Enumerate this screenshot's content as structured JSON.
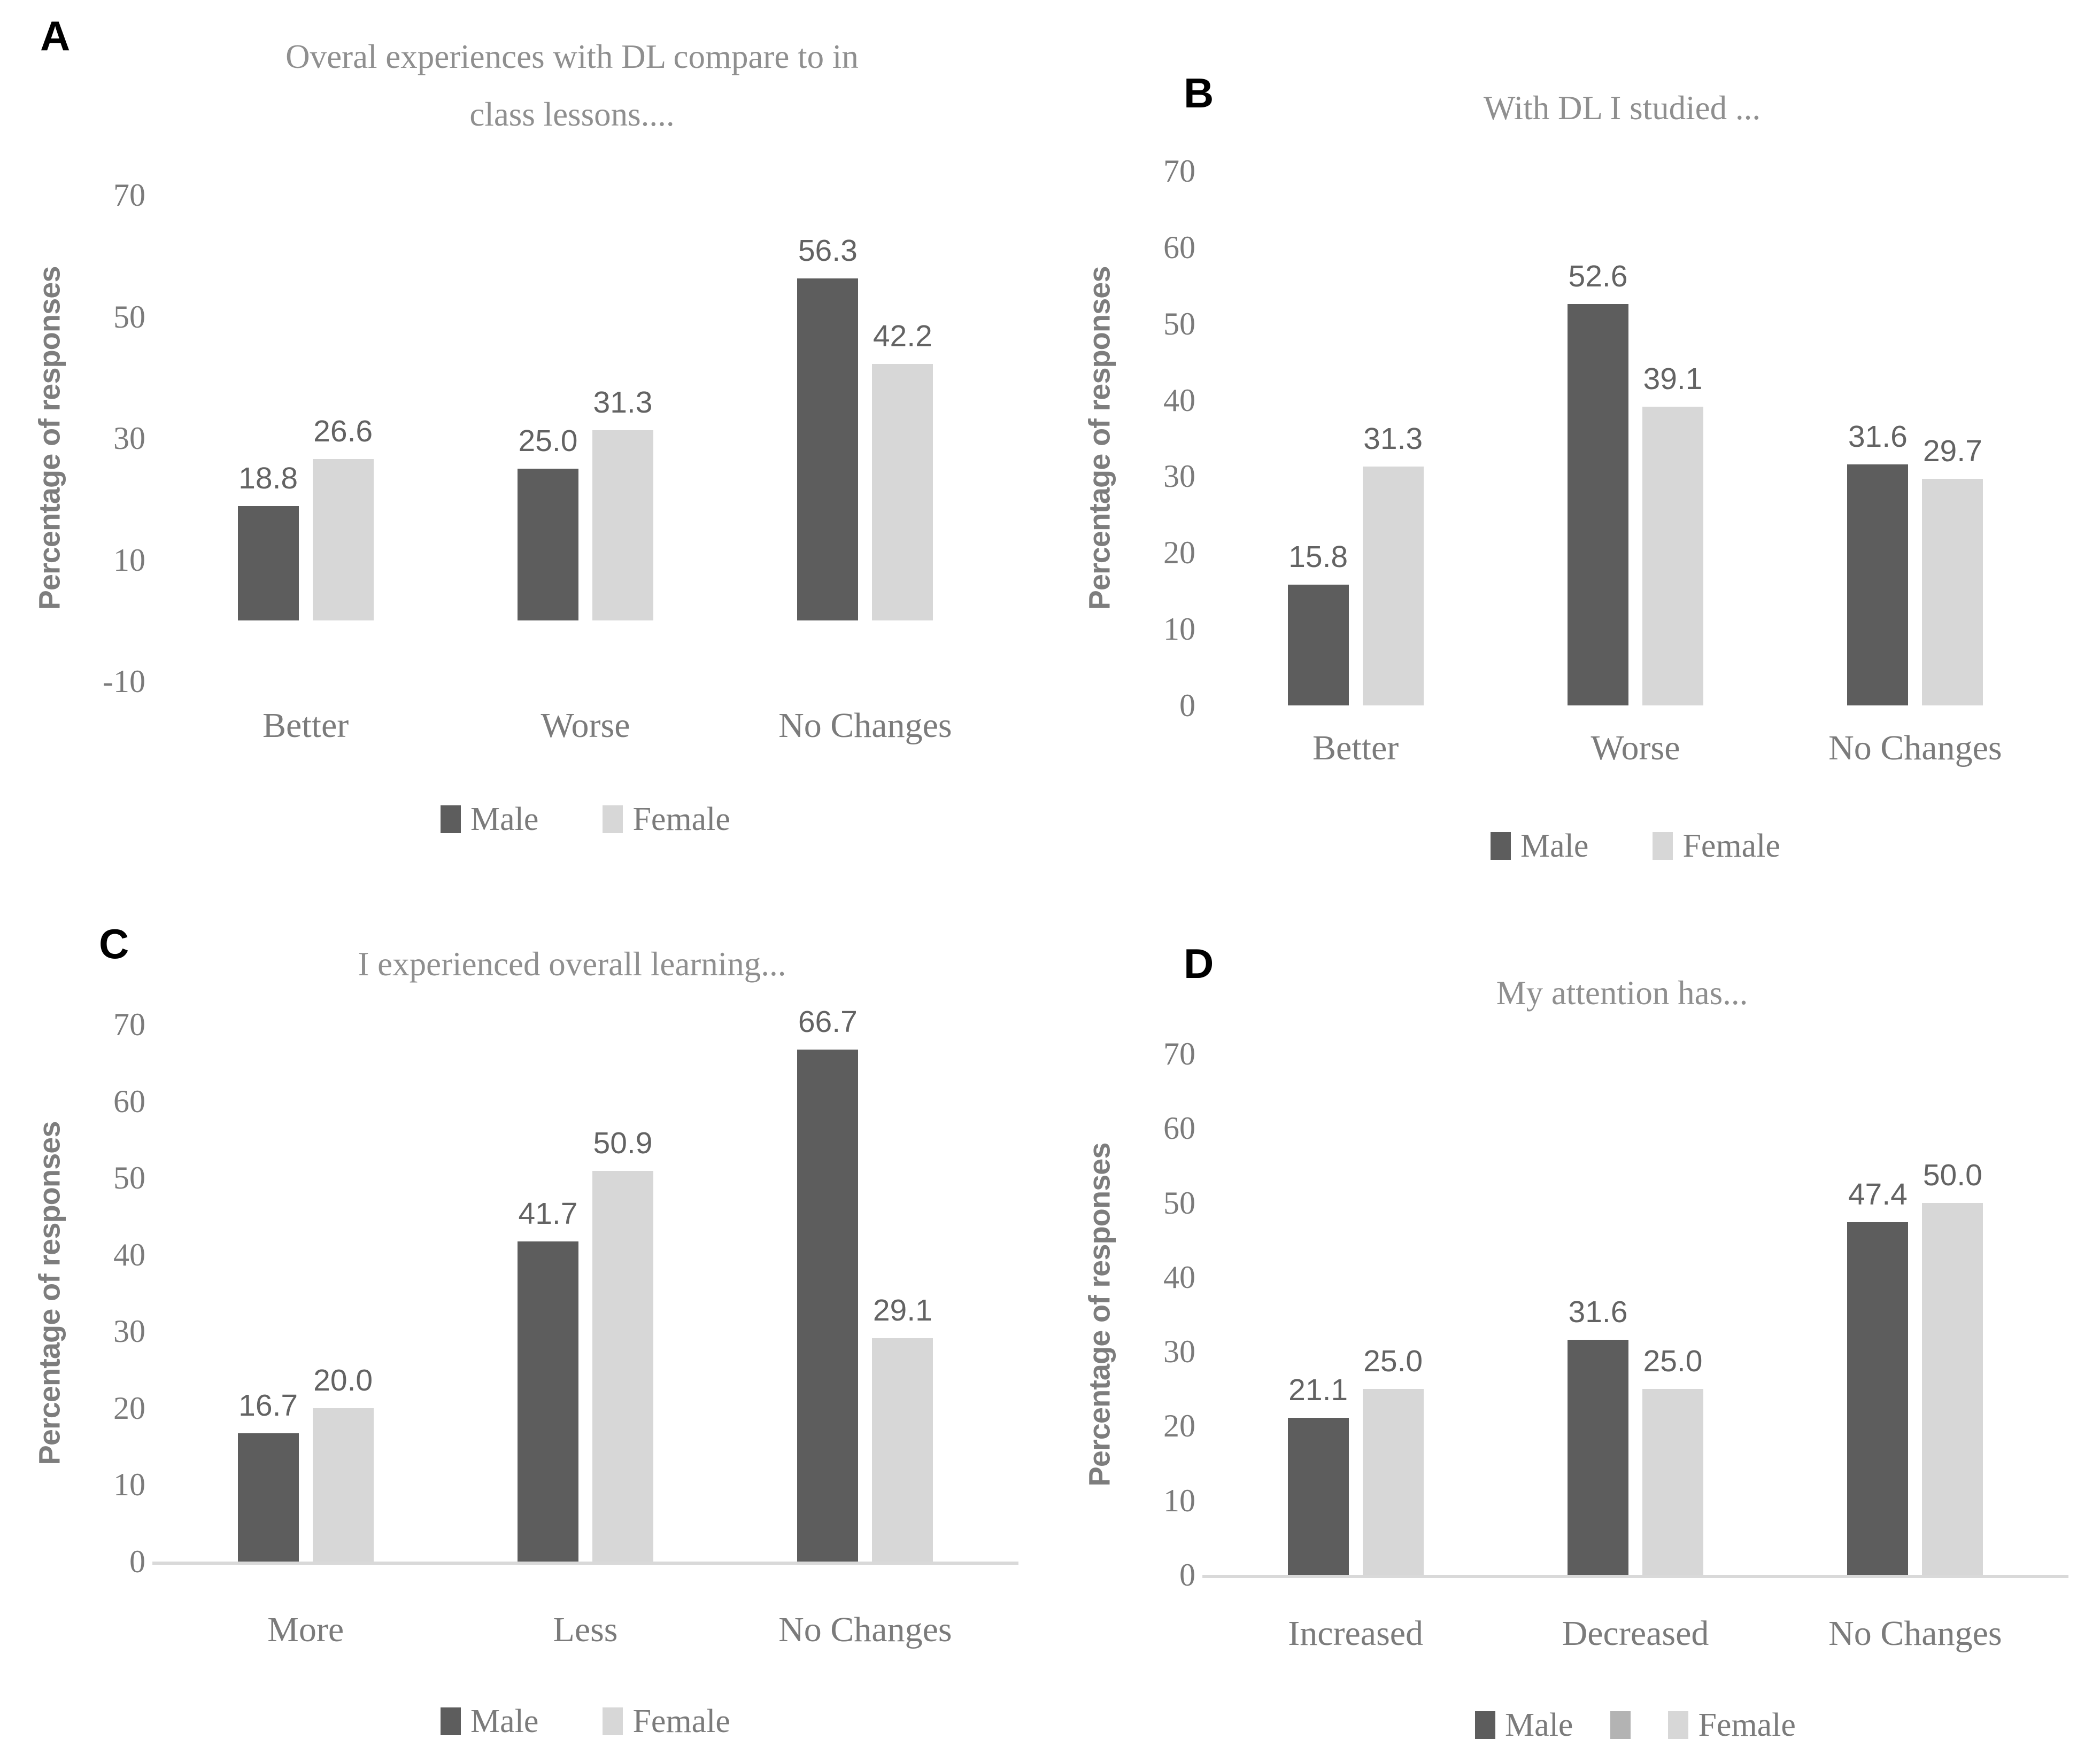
{
  "colors": {
    "male_bar": "#5d5d5d",
    "female_bar": "#d7d7d7",
    "legend_extra_swatch": "#b3b3b3",
    "axis_line": "#d9d9d9",
    "title_text": "#8f8f8f",
    "axis_text": "#7b7b7b",
    "data_label_text": "#636363",
    "panel_letter_text": "#000000"
  },
  "chart_data": [
    {
      "type": "bar",
      "panel_label": "A",
      "title": "Overal experiences with DL compare to in class lessons....",
      "ylabel": "Percentage of responses",
      "xlabel": "",
      "categories": [
        "Better",
        "Worse",
        "No Changes"
      ],
      "series": [
        {
          "name": "Male",
          "color_key": "male_bar",
          "values": [
            18.8,
            25.0,
            56.3
          ]
        },
        {
          "name": "Female",
          "color_key": "female_bar",
          "values": [
            26.6,
            31.3,
            42.2
          ]
        }
      ],
      "ylim": [
        -10,
        70
      ],
      "yticks": [
        70,
        50,
        30,
        10,
        -10
      ],
      "grid": false,
      "axis_line_visible": false,
      "data_label_decimals": 1,
      "legend_position": "bottom",
      "legend": [
        {
          "label": "Male",
          "color_key": "male_bar"
        },
        {
          "label": "Female",
          "color_key": "female_bar"
        }
      ]
    },
    {
      "type": "bar",
      "panel_label": "B",
      "title": "With DL I studied ...",
      "ylabel": "Percentage of responses",
      "xlabel": "",
      "categories": [
        "Better",
        "Worse",
        "No Changes"
      ],
      "series": [
        {
          "name": "Male",
          "color_key": "male_bar",
          "values": [
            15.8,
            52.6,
            31.6
          ]
        },
        {
          "name": "Female",
          "color_key": "female_bar",
          "values": [
            31.3,
            39.1,
            29.7
          ]
        }
      ],
      "ylim": [
        0,
        70
      ],
      "yticks": [
        70,
        60,
        50,
        40,
        30,
        20,
        10,
        0
      ],
      "grid": false,
      "axis_line_visible": false,
      "data_label_decimals": 1,
      "legend_position": "bottom",
      "legend": [
        {
          "label": "Male",
          "color_key": "male_bar"
        },
        {
          "label": "Female",
          "color_key": "female_bar"
        }
      ]
    },
    {
      "type": "bar",
      "panel_label": "C",
      "title": "I experienced overall learning...",
      "ylabel": "Percentage of responses",
      "xlabel": "",
      "categories": [
        "More",
        "Less",
        "No Changes"
      ],
      "series": [
        {
          "name": "Male",
          "color_key": "male_bar",
          "values": [
            16.7,
            41.7,
            66.7
          ]
        },
        {
          "name": "Female",
          "color_key": "female_bar",
          "values": [
            20.0,
            50.9,
            29.1
          ]
        }
      ],
      "ylim": [
        0,
        70
      ],
      "yticks": [
        70,
        60,
        50,
        40,
        30,
        20,
        10,
        0
      ],
      "grid": false,
      "axis_line_visible": true,
      "data_label_decimals": 1,
      "legend_position": "bottom",
      "legend": [
        {
          "label": "Male",
          "color_key": "male_bar"
        },
        {
          "label": "Female",
          "color_key": "female_bar"
        }
      ]
    },
    {
      "type": "bar",
      "panel_label": "D",
      "title": "My attention has...",
      "ylabel": "Percentage of responses",
      "xlabel": "",
      "categories": [
        "Increased",
        "Decreased",
        "No Changes"
      ],
      "series": [
        {
          "name": "Male",
          "color_key": "male_bar",
          "values": [
            21.1,
            31.6,
            47.4
          ]
        },
        {
          "name": "Female",
          "color_key": "female_bar",
          "values": [
            25.0,
            25.0,
            50.0
          ]
        }
      ],
      "ylim": [
        0,
        70
      ],
      "yticks": [
        70,
        60,
        50,
        40,
        30,
        20,
        10,
        0
      ],
      "grid": false,
      "axis_line_visible": true,
      "data_label_decimals": 1,
      "legend_position": "bottom",
      "legend": [
        {
          "label": "Male",
          "color_key": "male_bar"
        },
        {
          "label": "",
          "color_key": "legend_extra_swatch"
        },
        {
          "label": "Female",
          "color_key": "female_bar"
        }
      ]
    }
  ]
}
